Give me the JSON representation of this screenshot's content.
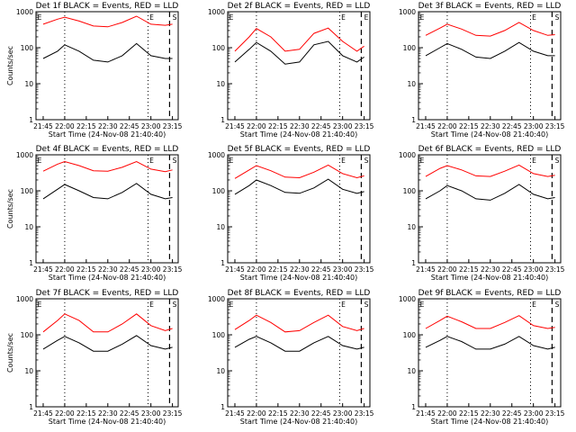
{
  "chart_data": [
    {
      "type": "line",
      "title": "Det 1f BLACK = Events, RED = LLD",
      "xlabel": "Start Time (24-Nov-08 21:40:40)",
      "ylabel": "Counts/sec",
      "x_ticks": [
        "21:45",
        "22:00",
        "22:15",
        "22:30",
        "22:45",
        "23:00",
        "23:15"
      ],
      "y_ticks": [
        "1",
        "10",
        "100",
        "1000"
      ],
      "ylim": [
        1,
        1000
      ],
      "y_scale": "log",
      "markers": [
        "E",
        "E",
        "S"
      ],
      "series": [
        {
          "color": "#000000",
          "x": [
            "21:45",
            "21:55",
            "22:00",
            "22:10",
            "22:20",
            "22:30",
            "22:40",
            "22:50",
            "23:00",
            "23:10",
            "23:15"
          ],
          "values": [
            50,
            80,
            120,
            80,
            45,
            40,
            60,
            130,
            60,
            50,
            50
          ]
        },
        {
          "color": "#ff0000",
          "x": [
            "21:45",
            "21:55",
            "22:00",
            "22:10",
            "22:20",
            "22:30",
            "22:40",
            "22:50",
            "23:00",
            "23:10",
            "23:15"
          ],
          "values": [
            450,
            620,
            700,
            550,
            400,
            380,
            500,
            750,
            450,
            420,
            450
          ]
        }
      ]
    },
    {
      "type": "line",
      "title": "Det 2f BLACK = Events, RED = LLD",
      "xlabel": "Start Time (24-Nov-08 21:40:40)",
      "ylabel": "",
      "x_ticks": [
        "21:45",
        "22:00",
        "22:15",
        "22:30",
        "22:45",
        "23:00",
        "23:15"
      ],
      "y_ticks": [
        "1",
        "10",
        "100",
        "1000"
      ],
      "ylim": [
        1,
        1000
      ],
      "y_scale": "log",
      "markers": [
        "E",
        "E",
        "E"
      ],
      "series": [
        {
          "color": "#000000",
          "x": [
            "21:45",
            "21:55",
            "22:00",
            "22:10",
            "22:20",
            "22:30",
            "22:40",
            "22:50",
            "23:00",
            "23:10",
            "23:15"
          ],
          "values": [
            40,
            90,
            140,
            80,
            35,
            40,
            120,
            150,
            60,
            40,
            55
          ]
        },
        {
          "color": "#ff0000",
          "x": [
            "21:45",
            "21:55",
            "22:00",
            "22:10",
            "22:20",
            "22:30",
            "22:40",
            "22:50",
            "23:00",
            "23:10",
            "23:15"
          ],
          "values": [
            80,
            200,
            340,
            200,
            80,
            90,
            250,
            350,
            150,
            80,
            110
          ]
        }
      ]
    },
    {
      "type": "line",
      "title": "Det 3f BLACK = Events, RED = LLD",
      "xlabel": "Start Time (24-Nov-08 21:40:40)",
      "ylabel": "",
      "x_ticks": [
        "21:45",
        "22:00",
        "22:15",
        "22:30",
        "22:45",
        "23:00",
        "23:15"
      ],
      "y_ticks": [
        "1",
        "10",
        "100",
        "1000"
      ],
      "ylim": [
        1,
        1000
      ],
      "y_scale": "log",
      "markers": [
        "E",
        "E",
        "S"
      ],
      "series": [
        {
          "color": "#000000",
          "x": [
            "21:45",
            "21:55",
            "22:00",
            "22:10",
            "22:20",
            "22:30",
            "22:40",
            "22:50",
            "23:00",
            "23:10",
            "23:15"
          ],
          "values": [
            60,
            100,
            130,
            90,
            55,
            50,
            80,
            140,
            80,
            60,
            60
          ]
        },
        {
          "color": "#ff0000",
          "x": [
            "21:45",
            "21:55",
            "22:00",
            "22:10",
            "22:20",
            "22:30",
            "22:40",
            "22:50",
            "23:00",
            "23:10",
            "23:15"
          ],
          "values": [
            220,
            350,
            450,
            330,
            220,
            210,
            300,
            500,
            300,
            220,
            230
          ]
        }
      ]
    },
    {
      "type": "line",
      "title": "Det 4f BLACK = Events, RED = LLD",
      "xlabel": "Start Time (24-Nov-08 21:40:40)",
      "ylabel": "Counts/sec",
      "x_ticks": [
        "21:45",
        "22:00",
        "22:15",
        "22:30",
        "22:45",
        "23:00",
        "23:15"
      ],
      "y_ticks": [
        "1",
        "10",
        "100",
        "1000"
      ],
      "ylim": [
        1,
        1000
      ],
      "y_scale": "log",
      "markers": [
        "E",
        "E",
        "S"
      ],
      "series": [
        {
          "color": "#000000",
          "x": [
            "21:45",
            "21:55",
            "22:00",
            "22:10",
            "22:20",
            "22:30",
            "22:40",
            "22:50",
            "23:00",
            "23:10",
            "23:15"
          ],
          "values": [
            60,
            110,
            150,
            100,
            65,
            60,
            90,
            160,
            80,
            60,
            65
          ]
        },
        {
          "color": "#ff0000",
          "x": [
            "21:45",
            "21:55",
            "22:00",
            "22:10",
            "22:20",
            "22:30",
            "22:40",
            "22:50",
            "23:00",
            "23:10",
            "23:15"
          ],
          "values": [
            350,
            550,
            650,
            500,
            360,
            350,
            450,
            650,
            400,
            340,
            380
          ]
        }
      ]
    },
    {
      "type": "line",
      "title": "Det 5f BLACK = Events, RED = LLD",
      "xlabel": "Start Time (24-Nov-08 21:40:40)",
      "ylabel": "",
      "x_ticks": [
        "21:45",
        "22:00",
        "22:15",
        "22:30",
        "22:45",
        "23:00",
        "23:15"
      ],
      "y_ticks": [
        "1",
        "10",
        "100",
        "1000"
      ],
      "ylim": [
        1,
        1000
      ],
      "y_scale": "log",
      "markers": [
        "E",
        "E",
        "S"
      ],
      "series": [
        {
          "color": "#000000",
          "x": [
            "21:45",
            "21:55",
            "22:00",
            "22:10",
            "22:20",
            "22:30",
            "22:40",
            "22:50",
            "23:00",
            "23:10",
            "23:15"
          ],
          "values": [
            80,
            140,
            200,
            140,
            90,
            85,
            120,
            210,
            110,
            85,
            95
          ]
        },
        {
          "color": "#ff0000",
          "x": [
            "21:45",
            "21:55",
            "22:00",
            "22:10",
            "22:20",
            "22:30",
            "22:40",
            "22:50",
            "23:00",
            "23:10",
            "23:15"
          ],
          "values": [
            220,
            380,
            500,
            360,
            240,
            230,
            330,
            520,
            300,
            230,
            260
          ]
        }
      ]
    },
    {
      "type": "line",
      "title": "Det 6f BLACK = Events, RED = LLD",
      "xlabel": "Start Time (24-Nov-08 21:40:40)",
      "ylabel": "",
      "x_ticks": [
        "21:45",
        "22:00",
        "22:15",
        "22:30",
        "22:45",
        "23:00",
        "23:15"
      ],
      "y_ticks": [
        "1",
        "10",
        "100",
        "1000"
      ],
      "ylim": [
        1,
        1000
      ],
      "y_scale": "log",
      "markers": [
        "E",
        "E",
        "S"
      ],
      "series": [
        {
          "color": "#000000",
          "x": [
            "21:45",
            "21:55",
            "22:00",
            "22:10",
            "22:20",
            "22:30",
            "22:40",
            "22:50",
            "23:00",
            "23:10",
            "23:15"
          ],
          "values": [
            60,
            100,
            140,
            100,
            60,
            55,
            85,
            150,
            80,
            60,
            65
          ]
        },
        {
          "color": "#ff0000",
          "x": [
            "21:45",
            "21:55",
            "22:00",
            "22:10",
            "22:20",
            "22:30",
            "22:40",
            "22:50",
            "23:00",
            "23:10",
            "23:15"
          ],
          "values": [
            250,
            420,
            500,
            380,
            260,
            250,
            350,
            520,
            300,
            250,
            270
          ]
        }
      ]
    },
    {
      "type": "line",
      "title": "Det 7f BLACK = Events, RED = LLD",
      "xlabel": "Start Time (24-Nov-08 21:40:40)",
      "ylabel": "Counts/sec",
      "x_ticks": [
        "21:45",
        "22:00",
        "22:15",
        "22:30",
        "22:45",
        "23:00",
        "23:15"
      ],
      "y_ticks": [
        "1",
        "10",
        "100",
        "1000"
      ],
      "ylim": [
        1,
        1000
      ],
      "y_scale": "log",
      "markers": [
        "E",
        "E",
        "S"
      ],
      "series": [
        {
          "color": "#000000",
          "x": [
            "21:45",
            "21:55",
            "22:00",
            "22:10",
            "22:20",
            "22:30",
            "22:40",
            "22:50",
            "23:00",
            "23:10",
            "23:15"
          ],
          "values": [
            40,
            70,
            90,
            60,
            35,
            35,
            55,
            95,
            50,
            40,
            45
          ]
        },
        {
          "color": "#ff0000",
          "x": [
            "21:45",
            "21:55",
            "22:00",
            "22:10",
            "22:20",
            "22:30",
            "22:40",
            "22:50",
            "23:00",
            "23:10",
            "23:15"
          ],
          "values": [
            120,
            250,
            380,
            250,
            120,
            120,
            200,
            380,
            180,
            130,
            150
          ]
        }
      ]
    },
    {
      "type": "line",
      "title": "Det 8f BLACK = Events, RED = LLD",
      "xlabel": "Start Time (24-Nov-08 21:40:40)",
      "ylabel": "",
      "x_ticks": [
        "21:45",
        "22:00",
        "22:15",
        "22:30",
        "22:45",
        "23:00",
        "23:15"
      ],
      "y_ticks": [
        "1",
        "10",
        "100",
        "1000"
      ],
      "ylim": [
        1,
        1000
      ],
      "y_scale": "log",
      "markers": [
        "E",
        "E",
        "S"
      ],
      "series": [
        {
          "color": "#000000",
          "x": [
            "21:45",
            "21:55",
            "22:00",
            "22:10",
            "22:20",
            "22:30",
            "22:40",
            "22:50",
            "23:00",
            "23:10",
            "23:15"
          ],
          "values": [
            45,
            75,
            90,
            60,
            35,
            35,
            60,
            90,
            50,
            40,
            45
          ]
        },
        {
          "color": "#ff0000",
          "x": [
            "21:45",
            "21:55",
            "22:00",
            "22:10",
            "22:20",
            "22:30",
            "22:40",
            "22:50",
            "23:00",
            "23:10",
            "23:15"
          ],
          "values": [
            140,
            250,
            350,
            220,
            120,
            130,
            220,
            350,
            170,
            130,
            150
          ]
        }
      ]
    },
    {
      "type": "line",
      "title": "Det 9f BLACK = Events, RED = LLD",
      "xlabel": "Start Time (24-Nov-08 21:40:40)",
      "ylabel": "",
      "x_ticks": [
        "21:45",
        "22:00",
        "22:15",
        "22:30",
        "22:45",
        "23:00",
        "23:15"
      ],
      "y_ticks": [
        "1",
        "10",
        "100",
        "1000"
      ],
      "ylim": [
        1,
        1000
      ],
      "y_scale": "log",
      "markers": [
        "E",
        "E",
        "S"
      ],
      "series": [
        {
          "color": "#000000",
          "x": [
            "21:45",
            "21:55",
            "22:00",
            "22:10",
            "22:20",
            "22:30",
            "22:40",
            "22:50",
            "23:00",
            "23:10",
            "23:15"
          ],
          "values": [
            45,
            70,
            90,
            65,
            40,
            40,
            55,
            90,
            50,
            40,
            45
          ]
        },
        {
          "color": "#ff0000",
          "x": [
            "21:45",
            "21:55",
            "22:00",
            "22:10",
            "22:20",
            "22:30",
            "22:40",
            "22:50",
            "23:00",
            "23:10",
            "23:15"
          ],
          "values": [
            150,
            250,
            330,
            230,
            150,
            150,
            220,
            340,
            180,
            150,
            160
          ]
        }
      ]
    }
  ]
}
